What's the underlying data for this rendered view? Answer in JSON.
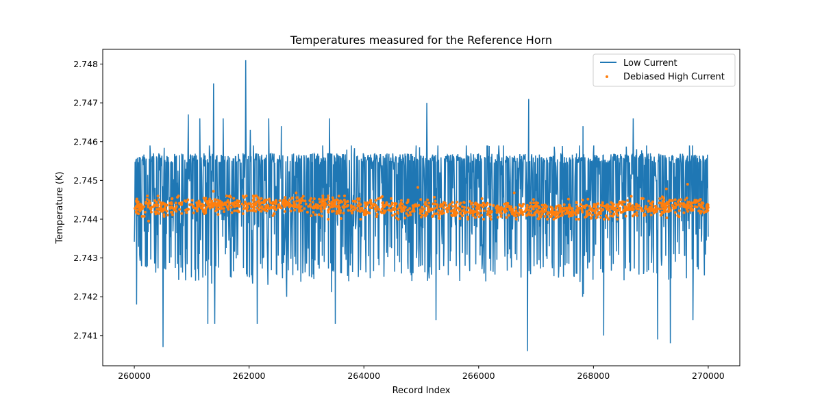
{
  "chart_data": {
    "type": "line",
    "title": "Temperatures measured for the Reference Horn",
    "xlabel": "Record Index",
    "ylabel": "Temperature (K)",
    "xlim": [
      259450,
      270550
    ],
    "ylim": [
      2.74022,
      2.74838
    ],
    "xticks": [
      260000,
      262000,
      264000,
      266000,
      268000,
      270000
    ],
    "xtick_labels": [
      "260000",
      "262000",
      "264000",
      "266000",
      "268000",
      "270000"
    ],
    "yticks": [
      2.741,
      2.742,
      2.743,
      2.744,
      2.745,
      2.746,
      2.747,
      2.748
    ],
    "ytick_labels": [
      "2.741",
      "2.742",
      "2.743",
      "2.744",
      "2.745",
      "2.746",
      "2.747",
      "2.748"
    ],
    "grid": false,
    "legend_position": "top-right",
    "series": [
      {
        "name": "Low Current",
        "kind": "line",
        "color": "#1f77b4",
        "x_range": [
          260000,
          270000
        ],
        "n_points": 1500,
        "mean": 2.7443,
        "band": [
          2.7424,
          2.7457
        ],
        "spikes": [
          {
            "x": 260500,
            "y": 2.7464
          },
          {
            "x": 260940,
            "y": 2.7467
          },
          {
            "x": 261140,
            "y": 2.7466
          },
          {
            "x": 261380,
            "y": 2.7475
          },
          {
            "x": 261550,
            "y": 2.7466
          },
          {
            "x": 261940,
            "y": 2.7481
          },
          {
            "x": 262020,
            "y": 2.7463
          },
          {
            "x": 262340,
            "y": 2.7466
          },
          {
            "x": 262560,
            "y": 2.7464
          },
          {
            "x": 263400,
            "y": 2.7466
          },
          {
            "x": 265100,
            "y": 2.747
          },
          {
            "x": 266870,
            "y": 2.7471
          },
          {
            "x": 267820,
            "y": 2.7464
          },
          {
            "x": 268690,
            "y": 2.7466
          },
          {
            "x": 260040,
            "y": 2.7418
          },
          {
            "x": 260500,
            "y": 2.7407
          },
          {
            "x": 261280,
            "y": 2.7413
          },
          {
            "x": 261400,
            "y": 2.7413
          },
          {
            "x": 262140,
            "y": 2.7413
          },
          {
            "x": 263500,
            "y": 2.7413
          },
          {
            "x": 265260,
            "y": 2.7414
          },
          {
            "x": 266850,
            "y": 2.7406
          },
          {
            "x": 268180,
            "y": 2.741
          },
          {
            "x": 269120,
            "y": 2.7409
          },
          {
            "x": 269340,
            "y": 2.7408
          },
          {
            "x": 269730,
            "y": 2.7414
          }
        ]
      },
      {
        "name": "Debiased High Current",
        "kind": "scatter",
        "color": "#ff7f0e",
        "x_range": [
          260000,
          270000
        ],
        "n_points": 1400,
        "mean": 2.7443,
        "band": [
          2.744,
          2.7446
        ],
        "outliers": [
          {
            "x": 261380,
            "y": 2.74472
          },
          {
            "x": 262820,
            "y": 2.74468
          },
          {
            "x": 264940,
            "y": 2.74482
          },
          {
            "x": 266620,
            "y": 2.74468
          },
          {
            "x": 269270,
            "y": 2.74478
          },
          {
            "x": 269640,
            "y": 2.7449
          },
          {
            "x": 260250,
            "y": 2.74395
          },
          {
            "x": 268050,
            "y": 2.74403
          }
        ]
      }
    ]
  }
}
